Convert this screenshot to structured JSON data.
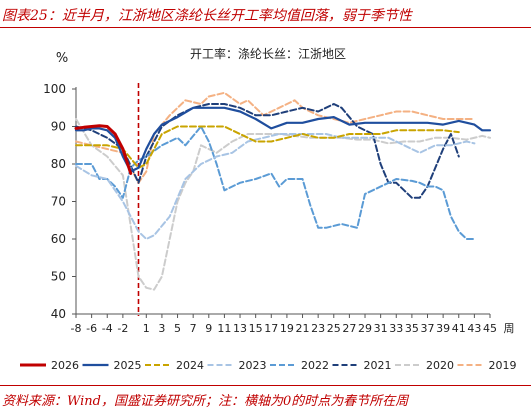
{
  "figure": {
    "title": "图表25：近半月，江浙地区涤纶长丝开工率均值回落，弱于季节性",
    "source": "资料来源：Wind，国盛证券研究所；注：横轴为0的时点为春节所在周"
  },
  "chart_data": {
    "type": "line",
    "title": "开工率：涤纶长丝：江浙地区",
    "ylabel": "%",
    "xlabel": "周",
    "ylim": [
      40,
      100
    ],
    "yticks": [
      40,
      50,
      60,
      70,
      80,
      90,
      100
    ],
    "xlim": [
      -8,
      45
    ],
    "xticks": [
      -8,
      -6,
      -4,
      -2,
      1,
      3,
      5,
      7,
      9,
      11,
      13,
      15,
      17,
      19,
      21,
      23,
      25,
      27,
      29,
      31,
      33,
      35,
      37,
      39,
      41,
      43,
      45
    ],
    "xtick_labels": [
      "-8",
      "-6",
      "-4",
      "-2",
      "1",
      "3",
      "5",
      "7",
      "9",
      "11",
      "13",
      "15",
      "17",
      "19",
      "21",
      "23",
      "25",
      "27",
      "29",
      "31",
      "33",
      "35",
      "37",
      "39",
      "41",
      "43",
      "45"
    ],
    "vline_x": 0,
    "vline_color": "#c00000",
    "grid": false,
    "legend_position": "bottom",
    "series": [
      {
        "name": "2026",
        "color": "#c00000",
        "dash": "solid",
        "width": 3,
        "points": [
          [
            -8,
            89.5
          ],
          [
            -7,
            89.8
          ],
          [
            -6,
            90
          ],
          [
            -5,
            90.2
          ],
          [
            -4,
            90
          ],
          [
            -3,
            88
          ],
          [
            -2,
            84
          ],
          [
            -1,
            77.5
          ]
        ]
      },
      {
        "name": "2025",
        "color": "#1f4e9e",
        "dash": "solid",
        "width": 2.2,
        "points": [
          [
            -8,
            89
          ],
          [
            -7,
            89
          ],
          [
            -6,
            89.5
          ],
          [
            -5,
            89.5
          ],
          [
            -4,
            89
          ],
          [
            -3,
            87
          ],
          [
            -2,
            82
          ],
          [
            -1,
            78
          ],
          [
            0,
            79
          ],
          [
            1,
            84
          ],
          [
            2,
            88
          ],
          [
            3,
            90.5
          ],
          [
            5,
            92.5
          ],
          [
            7,
            95
          ],
          [
            9,
            95
          ],
          [
            11,
            95
          ],
          [
            13,
            94
          ],
          [
            15,
            92
          ],
          [
            17,
            89.5
          ],
          [
            19,
            91
          ],
          [
            21,
            91
          ],
          [
            23,
            92
          ],
          [
            25,
            92.5
          ],
          [
            27,
            90.5
          ],
          [
            29,
            91
          ],
          [
            31,
            91
          ],
          [
            33,
            91
          ],
          [
            35,
            91
          ],
          [
            37,
            91
          ],
          [
            39,
            90.5
          ],
          [
            41,
            91.5
          ],
          [
            43,
            90.5
          ],
          [
            44,
            89
          ],
          [
            45,
            89
          ]
        ]
      },
      {
        "name": "2024",
        "color": "#c9a400",
        "dash": "6,3",
        "width": 2,
        "points": [
          [
            -8,
            85
          ],
          [
            -6,
            85
          ],
          [
            -4,
            85
          ],
          [
            -2,
            84
          ],
          [
            0,
            79
          ],
          [
            1,
            80
          ],
          [
            3,
            88
          ],
          [
            5,
            90
          ],
          [
            7,
            90
          ],
          [
            9,
            90
          ],
          [
            11,
            90
          ],
          [
            13,
            88
          ],
          [
            15,
            86
          ],
          [
            17,
            86
          ],
          [
            19,
            87
          ],
          [
            21,
            88
          ],
          [
            23,
            87
          ],
          [
            25,
            87
          ],
          [
            27,
            88
          ],
          [
            29,
            88
          ],
          [
            31,
            88
          ],
          [
            33,
            89
          ],
          [
            35,
            89
          ],
          [
            37,
            89
          ],
          [
            39,
            89
          ],
          [
            41,
            88.5
          ]
        ]
      },
      {
        "name": "2023",
        "color": "#a8c4e4",
        "dash": "6,3",
        "width": 2,
        "points": [
          [
            -8,
            79.5
          ],
          [
            -6,
            77
          ],
          [
            -4,
            76
          ],
          [
            -2,
            70
          ],
          [
            0,
            62
          ],
          [
            1,
            60
          ],
          [
            2,
            61
          ],
          [
            4,
            66
          ],
          [
            6,
            76
          ],
          [
            8,
            80
          ],
          [
            10,
            82
          ],
          [
            12,
            83
          ],
          [
            14,
            86
          ],
          [
            16,
            87
          ],
          [
            18,
            88
          ],
          [
            20,
            88
          ],
          [
            22,
            88
          ],
          [
            24,
            88
          ],
          [
            26,
            87
          ],
          [
            28,
            87
          ],
          [
            30,
            87
          ],
          [
            32,
            87
          ],
          [
            34,
            85
          ],
          [
            36,
            83
          ],
          [
            38,
            85
          ],
          [
            40,
            85
          ],
          [
            42,
            86
          ],
          [
            43,
            85.5
          ]
        ]
      },
      {
        "name": "2022",
        "color": "#5b9bd5",
        "dash": "6,3",
        "width": 2,
        "points": [
          [
            -8,
            80
          ],
          [
            -6,
            80
          ],
          [
            -5,
            76
          ],
          [
            -4,
            76
          ],
          [
            -3,
            74
          ],
          [
            -2,
            71
          ],
          [
            -1,
            79
          ],
          [
            0,
            81
          ],
          [
            1,
            82
          ],
          [
            3,
            85
          ],
          [
            5,
            87
          ],
          [
            6,
            85
          ],
          [
            8,
            90
          ],
          [
            9,
            86
          ],
          [
            10,
            80
          ],
          [
            11,
            73
          ],
          [
            13,
            75
          ],
          [
            15,
            76
          ],
          [
            17,
            77.5
          ],
          [
            18,
            74
          ],
          [
            19,
            76
          ],
          [
            20,
            76
          ],
          [
            21,
            76
          ],
          [
            22,
            69
          ],
          [
            23,
            63
          ],
          [
            24,
            63
          ],
          [
            26,
            64
          ],
          [
            28,
            63
          ],
          [
            29,
            72
          ],
          [
            30,
            73
          ],
          [
            32,
            75
          ],
          [
            33,
            76
          ],
          [
            35,
            75.5
          ],
          [
            36,
            75
          ],
          [
            37,
            74
          ],
          [
            38,
            74
          ],
          [
            39,
            73
          ],
          [
            40,
            66
          ],
          [
            41,
            62
          ],
          [
            42,
            60
          ],
          [
            43,
            60
          ]
        ]
      },
      {
        "name": "2021",
        "color": "#1f3f7a",
        "dash": "6,3",
        "width": 2,
        "points": [
          [
            -8,
            90
          ],
          [
            -6,
            89
          ],
          [
            -4,
            87
          ],
          [
            -2,
            84
          ],
          [
            0,
            75
          ],
          [
            1,
            82
          ],
          [
            3,
            90
          ],
          [
            5,
            93
          ],
          [
            7,
            95
          ],
          [
            9,
            96
          ],
          [
            11,
            96
          ],
          [
            13,
            95
          ],
          [
            15,
            93
          ],
          [
            17,
            93
          ],
          [
            19,
            94
          ],
          [
            21,
            95
          ],
          [
            23,
            94
          ],
          [
            25,
            96
          ],
          [
            26,
            95
          ],
          [
            28,
            90
          ],
          [
            30,
            88
          ],
          [
            31,
            80
          ],
          [
            32,
            75
          ],
          [
            33,
            75
          ],
          [
            34,
            73
          ],
          [
            35,
            71
          ],
          [
            36,
            71
          ],
          [
            37,
            74
          ],
          [
            38,
            79
          ],
          [
            39,
            84
          ],
          [
            40,
            88
          ],
          [
            41,
            82
          ]
        ]
      },
      {
        "name": "2020",
        "color": "#cccccc",
        "dash": "6,3",
        "width": 2,
        "points": [
          [
            -8,
            92
          ],
          [
            -6,
            85
          ],
          [
            -4,
            82
          ],
          [
            -2,
            77
          ],
          [
            0,
            50
          ],
          [
            1,
            47
          ],
          [
            2,
            46.5
          ],
          [
            3,
            50
          ],
          [
            4,
            60
          ],
          [
            5,
            70
          ],
          [
            6,
            75
          ],
          [
            7,
            78
          ],
          [
            8,
            85
          ],
          [
            10,
            83
          ],
          [
            12,
            86
          ],
          [
            14,
            88
          ],
          [
            16,
            88
          ],
          [
            18,
            88
          ],
          [
            20,
            87.5
          ],
          [
            22,
            87
          ],
          [
            24,
            87
          ],
          [
            26,
            87
          ],
          [
            28,
            86.5
          ],
          [
            30,
            86.5
          ],
          [
            32,
            85.5
          ],
          [
            34,
            86
          ],
          [
            36,
            86
          ],
          [
            38,
            87
          ],
          [
            40,
            87
          ],
          [
            42,
            86.5
          ],
          [
            44,
            87.5
          ],
          [
            45,
            87
          ]
        ]
      },
      {
        "name": "2019",
        "color": "#f4b183",
        "dash": "6,3",
        "width": 2,
        "points": [
          [
            -8,
            86
          ],
          [
            -6,
            85
          ],
          [
            -4,
            84
          ],
          [
            -2,
            83
          ],
          [
            0,
            75
          ],
          [
            1,
            78
          ],
          [
            2,
            88
          ],
          [
            4,
            93
          ],
          [
            6,
            97
          ],
          [
            8,
            96
          ],
          [
            9,
            98
          ],
          [
            11,
            99
          ],
          [
            13,
            96
          ],
          [
            14,
            97
          ],
          [
            16,
            93
          ],
          [
            18,
            95
          ],
          [
            20,
            97
          ],
          [
            21,
            95
          ],
          [
            23,
            93
          ],
          [
            25,
            92
          ],
          [
            27,
            91
          ],
          [
            29,
            92
          ],
          [
            31,
            93
          ],
          [
            33,
            94
          ],
          [
            35,
            94
          ],
          [
            37,
            93
          ],
          [
            39,
            92
          ],
          [
            41,
            92
          ],
          [
            43,
            92
          ]
        ]
      }
    ]
  }
}
